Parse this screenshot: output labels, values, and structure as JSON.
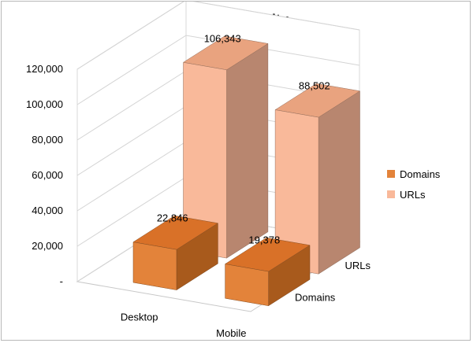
{
  "chart_data": {
    "type": "bar",
    "title": "SERP Diversity",
    "categories": [
      "Desktop",
      "Mobile"
    ],
    "series": [
      {
        "name": "Domains",
        "values": [
          22846,
          19378
        ],
        "labels": [
          "22,846",
          "19,378"
        ],
        "color": "#e3833a"
      },
      {
        "name": "URLs",
        "values": [
          106343,
          88502
        ],
        "labels": [
          "106,343",
          "88,502"
        ],
        "color": "#f9b99a"
      }
    ],
    "depth_axis_labels": [
      "URLs",
      "Domains"
    ],
    "ylim": [
      0,
      120000
    ],
    "y_ticks": [
      "-",
      "20,000",
      "40,000",
      "60,000",
      "80,000",
      "100,000",
      "120,000"
    ],
    "grid": true,
    "legend_position": "right",
    "style": "3d-column"
  }
}
